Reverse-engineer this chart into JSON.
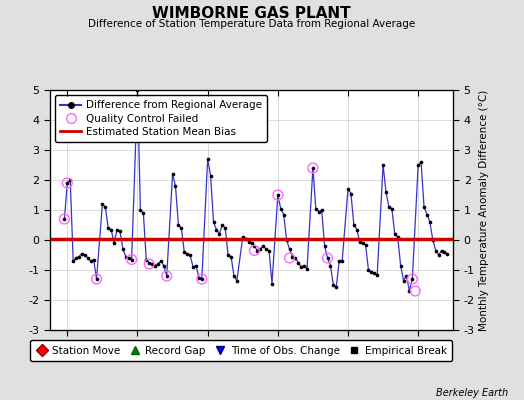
{
  "title": "WIMBORNE GAS PLANT",
  "subtitle": "Difference of Station Temperature Data from Regional Average",
  "ylabel_right": "Monthly Temperature Anomaly Difference (°C)",
  "watermark": "Berkeley Earth",
  "ylim": [
    -3,
    5
  ],
  "xlim": [
    1965.5,
    1977.0
  ],
  "bias": 0.05,
  "background_color": "#e0e0e0",
  "plot_bg_color": "#ffffff",
  "grid_color": "#cccccc",
  "xticks": [
    1966,
    1968,
    1970,
    1972,
    1974,
    1976
  ],
  "yticks": [
    -3,
    -2,
    -1,
    0,
    1,
    2,
    3,
    4,
    5
  ],
  "line_color": "#3333cc",
  "dot_color": "#000000",
  "bias_color": "#cc0000",
  "qc_color": "#ff66ff",
  "data_x": [
    1965.917,
    1966.0,
    1966.083,
    1966.167,
    1966.25,
    1966.333,
    1966.417,
    1966.5,
    1966.583,
    1966.667,
    1966.75,
    1966.833,
    1967.0,
    1967.083,
    1967.167,
    1967.25,
    1967.333,
    1967.417,
    1967.5,
    1967.583,
    1967.667,
    1967.75,
    1967.833,
    1968.0,
    1968.083,
    1968.167,
    1968.25,
    1968.333,
    1968.417,
    1968.5,
    1968.583,
    1968.667,
    1968.75,
    1968.833,
    1969.0,
    1969.083,
    1969.167,
    1969.25,
    1969.333,
    1969.417,
    1969.5,
    1969.583,
    1969.667,
    1969.75,
    1969.833,
    1970.0,
    1970.083,
    1970.167,
    1970.25,
    1970.333,
    1970.417,
    1970.5,
    1970.583,
    1970.667,
    1970.75,
    1970.833,
    1971.0,
    1971.083,
    1971.167,
    1971.25,
    1971.333,
    1971.417,
    1971.5,
    1971.583,
    1971.667,
    1971.75,
    1971.833,
    1972.0,
    1972.083,
    1972.167,
    1972.25,
    1972.333,
    1972.417,
    1972.5,
    1972.583,
    1972.667,
    1972.75,
    1972.833,
    1973.0,
    1973.083,
    1973.167,
    1973.25,
    1973.333,
    1973.417,
    1973.5,
    1973.583,
    1973.667,
    1973.75,
    1973.833,
    1974.0,
    1974.083,
    1974.167,
    1974.25,
    1974.333,
    1974.417,
    1974.5,
    1974.583,
    1974.667,
    1974.75,
    1974.833,
    1975.0,
    1975.083,
    1975.167,
    1975.25,
    1975.333,
    1975.417,
    1975.5,
    1975.583,
    1975.667,
    1975.75,
    1975.833,
    1976.0,
    1976.083,
    1976.167,
    1976.25,
    1976.333,
    1976.417,
    1976.5,
    1976.583,
    1976.667,
    1976.75,
    1976.833
  ],
  "data_y": [
    0.7,
    1.9,
    2.0,
    -0.7,
    -0.6,
    -0.55,
    -0.45,
    -0.5,
    -0.6,
    -0.7,
    -0.65,
    -1.3,
    1.2,
    1.1,
    0.4,
    0.35,
    -0.1,
    0.35,
    0.3,
    -0.3,
    -0.55,
    -0.6,
    -0.65,
    5.0,
    1.0,
    0.9,
    -0.65,
    -0.75,
    -0.8,
    -0.85,
    -0.8,
    -0.7,
    -0.85,
    -1.2,
    2.2,
    1.8,
    0.5,
    0.4,
    -0.4,
    -0.45,
    -0.5,
    -0.9,
    -0.85,
    -1.25,
    -1.3,
    2.7,
    2.15,
    0.6,
    0.35,
    0.2,
    0.5,
    0.4,
    -0.5,
    -0.55,
    -1.2,
    -1.35,
    0.1,
    0.05,
    -0.05,
    -0.1,
    -0.2,
    -0.35,
    -0.3,
    -0.2,
    -0.3,
    -0.35,
    -1.45,
    1.5,
    1.05,
    0.85,
    0.0,
    -0.3,
    -0.55,
    -0.6,
    -0.75,
    -0.9,
    -0.85,
    -0.95,
    2.4,
    1.05,
    0.95,
    1.0,
    -0.2,
    -0.6,
    -0.85,
    -1.5,
    -1.55,
    -0.7,
    -0.7,
    1.7,
    1.55,
    0.5,
    0.35,
    -0.05,
    -0.1,
    -0.15,
    -1.0,
    -1.05,
    -1.1,
    -1.15,
    2.5,
    1.6,
    1.1,
    1.05,
    0.2,
    0.1,
    -0.85,
    -1.35,
    -1.2,
    -1.7,
    -1.3,
    2.5,
    2.6,
    1.1,
    0.85,
    0.6,
    0.0,
    -0.35,
    -0.5,
    -0.35,
    -0.4,
    -0.45
  ],
  "qc_failed_x": [
    1965.917,
    1966.0,
    1966.833,
    1967.833,
    1968.333,
    1968.833,
    1969.833,
    1971.333,
    1972.0,
    1972.333,
    1973.417,
    1973.0,
    1975.833,
    1975.917
  ],
  "qc_failed_y": [
    0.7,
    1.9,
    -1.3,
    -0.65,
    -0.8,
    -1.2,
    -1.3,
    -0.35,
    1.5,
    -0.6,
    -0.6,
    2.4,
    -1.3,
    -1.7
  ],
  "legend1_labels": [
    "Difference from Regional Average",
    "Quality Control Failed",
    "Estimated Station Mean Bias"
  ],
  "legend2_labels": [
    "Station Move",
    "Record Gap",
    "Time of Obs. Change",
    "Empirical Break"
  ]
}
